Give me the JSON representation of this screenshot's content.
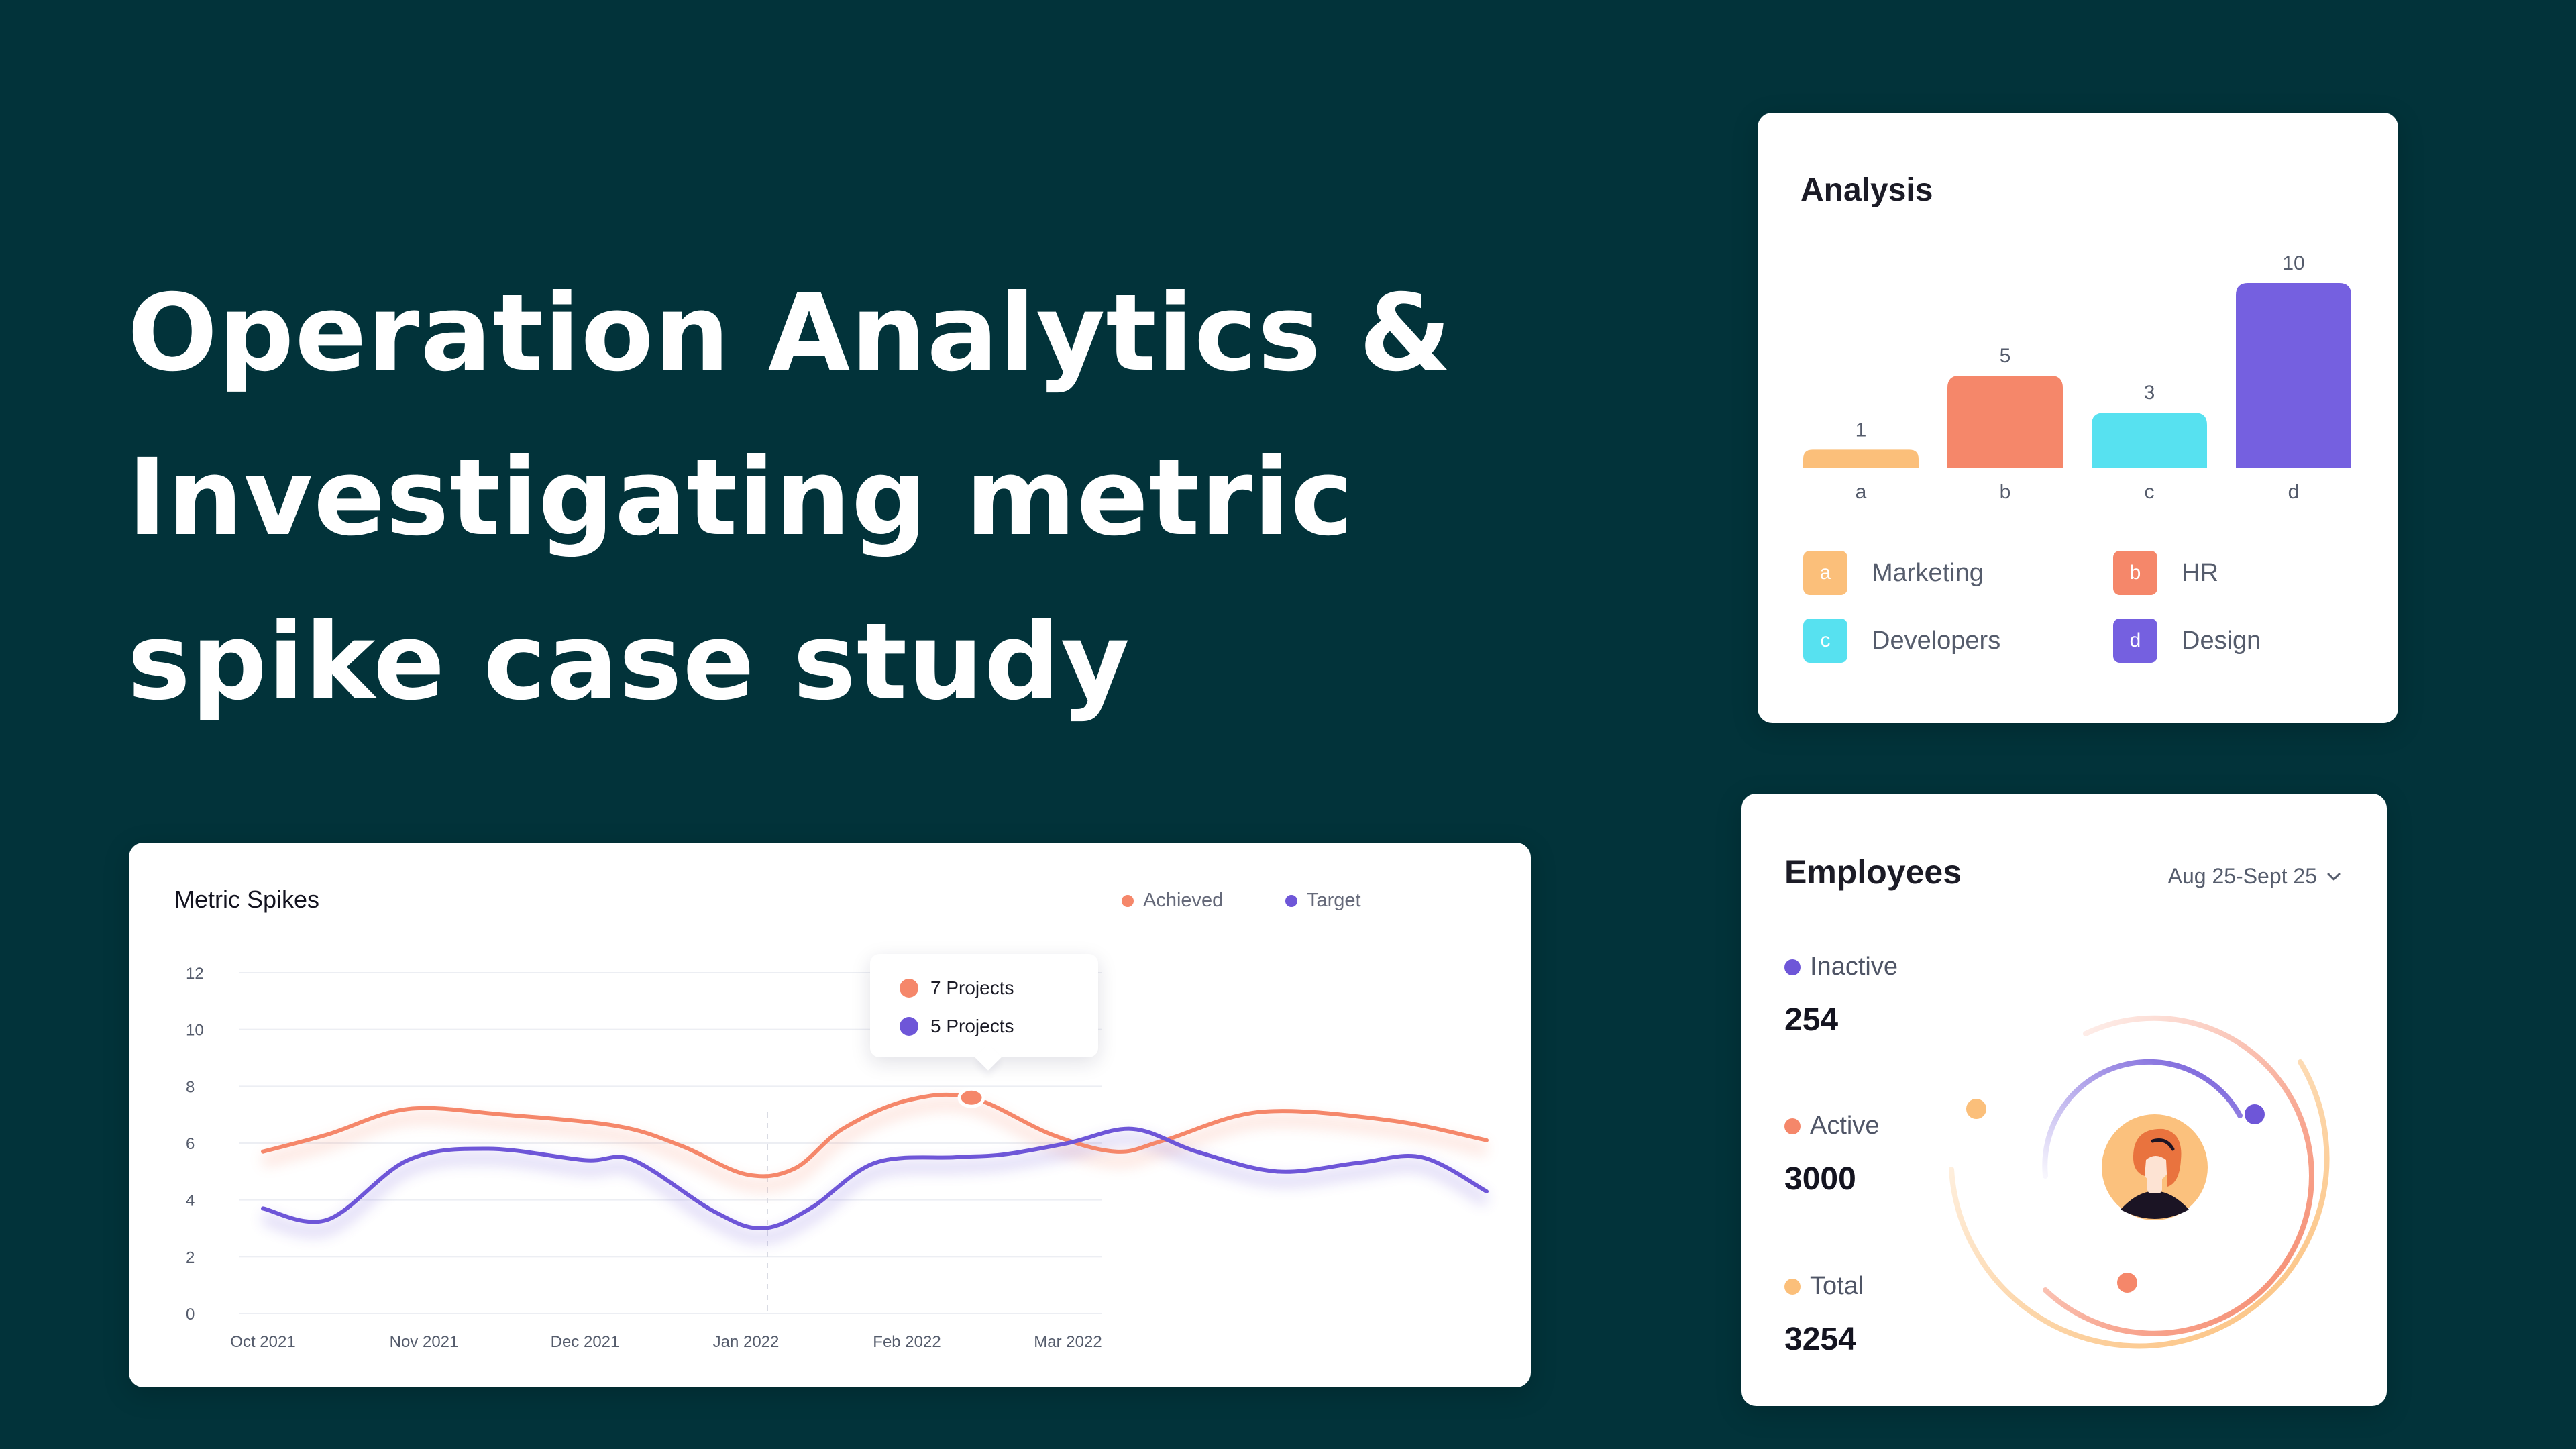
{
  "hero": {
    "lines": [
      "Operation Analytics &",
      "Investigating metric",
      "spike case study"
    ]
  },
  "colors": {
    "background": "#02333a",
    "achieved": "#f5876a",
    "target": "#6e56d8",
    "marketing": "#fbbf7a",
    "hr": "#f5876a",
    "developers": "#57e1f0",
    "design": "#7560e0"
  },
  "metric": {
    "title": "Metric Spikes",
    "legend": [
      "Achieved",
      "Target"
    ],
    "tooltip": [
      "7 Projects",
      "5 Projects"
    ]
  },
  "analysis": {
    "title": "Analysis",
    "legend": [
      {
        "key": "a",
        "label": "Marketing"
      },
      {
        "key": "b",
        "label": "HR"
      },
      {
        "key": "c",
        "label": "Developers"
      },
      {
        "key": "d",
        "label": "Design"
      }
    ]
  },
  "employees": {
    "title": "Employees",
    "date_range": "Aug 25-Sept 25",
    "stats": [
      {
        "label": "Inactive",
        "value": "254"
      },
      {
        "label": "Active",
        "value": "3000"
      },
      {
        "label": "Total",
        "value": "3254"
      }
    ],
    "icons": [
      "chevron-down-icon",
      "avatar-icon"
    ]
  },
  "chart_data": [
    {
      "type": "line",
      "title": "Metric Spikes",
      "x": [
        "Oct 2021",
        "Nov 2021",
        "Dec 2021",
        "Jan 2022",
        "Feb 2022",
        "Mar 2022"
      ],
      "y_ticks": [
        0,
        2,
        4,
        6,
        8,
        10,
        12
      ],
      "ylim": [
        0,
        12
      ],
      "series": [
        {
          "name": "Achieved",
          "color": "#f5876a",
          "points": [
            [
              0.0,
              5.7
            ],
            [
              0.4,
              6.3
            ],
            [
              0.9,
              7.2
            ],
            [
              1.5,
              7.0
            ],
            [
              2.2,
              6.6
            ],
            [
              2.6,
              5.9
            ],
            [
              3.0,
              4.9
            ],
            [
              3.3,
              5.1
            ],
            [
              3.6,
              6.5
            ],
            [
              4.0,
              7.5
            ],
            [
              4.4,
              7.6
            ],
            [
              4.9,
              6.3
            ],
            [
              5.3,
              5.7
            ],
            [
              5.6,
              6.1
            ],
            [
              6.2,
              7.1
            ],
            [
              7.0,
              6.8
            ],
            [
              7.6,
              6.1
            ]
          ]
        },
        {
          "name": "Target",
          "color": "#6e56d8",
          "points": [
            [
              0.0,
              3.7
            ],
            [
              0.4,
              3.3
            ],
            [
              0.9,
              5.4
            ],
            [
              1.4,
              5.8
            ],
            [
              2.0,
              5.4
            ],
            [
              2.3,
              5.4
            ],
            [
              2.8,
              3.6
            ],
            [
              3.1,
              3.0
            ],
            [
              3.4,
              3.7
            ],
            [
              3.8,
              5.3
            ],
            [
              4.3,
              5.5
            ],
            [
              4.6,
              5.6
            ],
            [
              5.0,
              6.0
            ],
            [
              5.4,
              6.5
            ],
            [
              5.8,
              5.7
            ],
            [
              6.3,
              5.0
            ],
            [
              6.8,
              5.3
            ],
            [
              7.2,
              5.5
            ],
            [
              7.6,
              4.3
            ]
          ]
        }
      ],
      "highlight": {
        "x": 4.4,
        "y": 7.6
      },
      "grid": true,
      "legend_placement": "top-right"
    },
    {
      "type": "bar",
      "title": "Analysis",
      "categories": [
        "a",
        "b",
        "c",
        "d"
      ],
      "values": [
        1,
        5,
        3,
        10
      ],
      "colors": [
        "#fbbf7a",
        "#f5876a",
        "#57e1f0",
        "#7560e0"
      ],
      "ylim": [
        0,
        10
      ]
    }
  ]
}
